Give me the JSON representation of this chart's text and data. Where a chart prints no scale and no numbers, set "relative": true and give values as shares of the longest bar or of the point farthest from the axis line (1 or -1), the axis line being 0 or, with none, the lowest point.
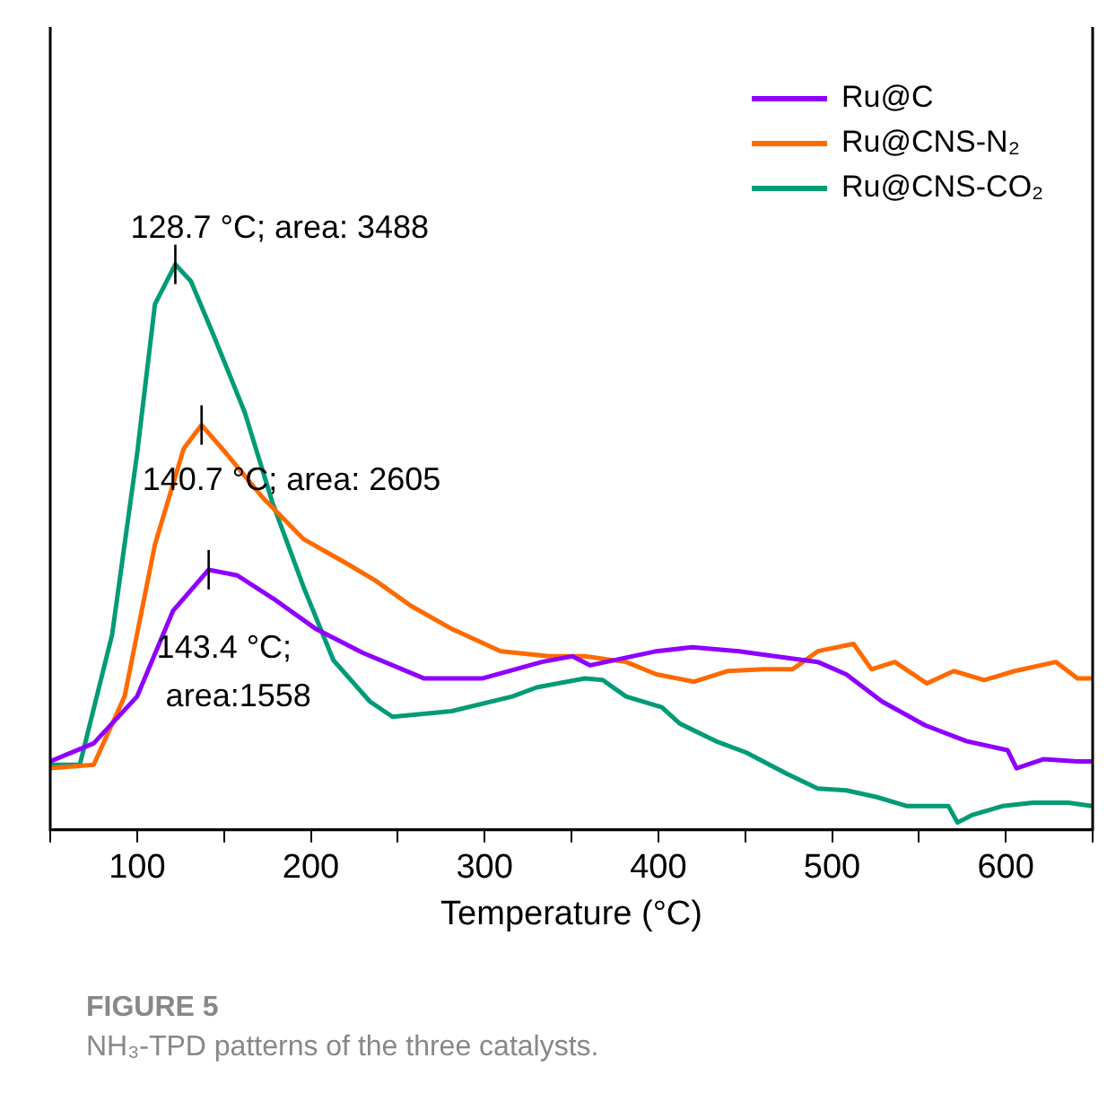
{
  "chart_data": {
    "type": "line",
    "title": "FIGURE 5",
    "subtitle": "NH₃-TPD patterns of the three catalysts.",
    "xlabel": "Temperature (°C)",
    "relative": true,
    "xlim": [
      50,
      650
    ],
    "xticks": [
      {
        "value": 50,
        "label": null
      },
      100,
      {
        "value": 150,
        "label": null
      },
      200,
      {
        "value": 250,
        "label": null
      },
      300,
      {
        "value": 350,
        "label": null
      },
      400,
      {
        "value": 450,
        "label": null
      },
      500,
      {
        "value": 550,
        "label": null
      },
      600,
      {
        "value": 650,
        "label": null
      }
    ],
    "legend": "top right",
    "grid": false,
    "marker": "none",
    "line_style": "solid",
    "series": [
      {
        "name": "Ru@C",
        "color": "#8f00ff",
        "x": [
          50,
          75,
          100,
          120.6,
          141.2,
          157.7,
          178.4,
          203.1,
          229.9,
          265,
          299,
          333,
          350.5,
          360.8,
          399,
          419.6,
          446.4,
          467,
          491.8,
          508.2,
          528.8,
          553.6,
          577.3,
          601,
          606.2,
          621.6,
          641.3,
          650
        ],
        "values": [
          0.121,
          0.153,
          0.236,
          0.387,
          0.46,
          0.45,
          0.409,
          0.355,
          0.313,
          0.268,
          0.268,
          0.297,
          0.307,
          0.291,
          0.316,
          0.323,
          0.316,
          0.307,
          0.297,
          0.275,
          0.227,
          0.185,
          0.157,
          0.141,
          0.109,
          0.125,
          0.121,
          0.121
        ]
      },
      {
        "name": "Ru@CNS-N₂",
        "color": "#ff6a00",
        "x": [
          50,
          75,
          92.8,
          110.3,
          126.8,
          137.1,
          151.5,
          172.2,
          195.9,
          219.6,
          237.1,
          257.7,
          281.4,
          309.3,
          337.1,
          357.7,
          381.4,
          399,
          420.6,
          440.2,
          460.8,
          477.3,
          491.8,
          512.4,
          522.7,
          536.1,
          554.6,
          570.1,
          587.6,
          605.2,
          628.9,
          641.3,
          650
        ],
        "values": [
          0.109,
          0.115,
          0.236,
          0.505,
          0.674,
          0.716,
          0.665,
          0.588,
          0.514,
          0.473,
          0.441,
          0.396,
          0.355,
          0.316,
          0.307,
          0.307,
          0.297,
          0.275,
          0.262,
          0.281,
          0.284,
          0.284,
          0.316,
          0.329,
          0.284,
          0.297,
          0.259,
          0.281,
          0.265,
          0.281,
          0.297,
          0.268,
          0.268
        ]
      },
      {
        "name": "Ru@CNS-CO₂",
        "color": "#009b77",
        "x": [
          50,
          67,
          85.6,
          100,
          110.3,
          122,
          131,
          144,
          162,
          178,
          196,
          213,
          234,
          247,
          281,
          316,
          330,
          357.7,
          368,
          381.4,
          402,
          412.4,
          433,
          450.5,
          474.2,
          491.8,
          508.2,
          525.8,
          543.3,
          567,
          572.2,
          580.4,
          598,
          615.5,
          636,
          650
        ],
        "values": [
          0.115,
          0.115,
          0.345,
          0.665,
          0.93,
          1.0,
          0.97,
          0.875,
          0.738,
          0.578,
          0.428,
          0.3,
          0.227,
          0.2,
          0.21,
          0.236,
          0.252,
          0.268,
          0.265,
          0.236,
          0.217,
          0.188,
          0.157,
          0.137,
          0.099,
          0.073,
          0.07,
          0.058,
          0.042,
          0.042,
          0.013,
          0.026,
          0.042,
          0.048,
          0.048,
          0.042
        ]
      }
    ],
    "annotations": [
      {
        "text": "128.7 °C; area: 3488",
        "x": 122,
        "y": 1.0
      },
      {
        "text": "140.7 °C; area: 2605",
        "x": 137.1,
        "y": 0.716
      },
      {
        "text": "143.4 °C;\narea:1558",
        "x": 141.2,
        "y": 0.46
      }
    ]
  }
}
